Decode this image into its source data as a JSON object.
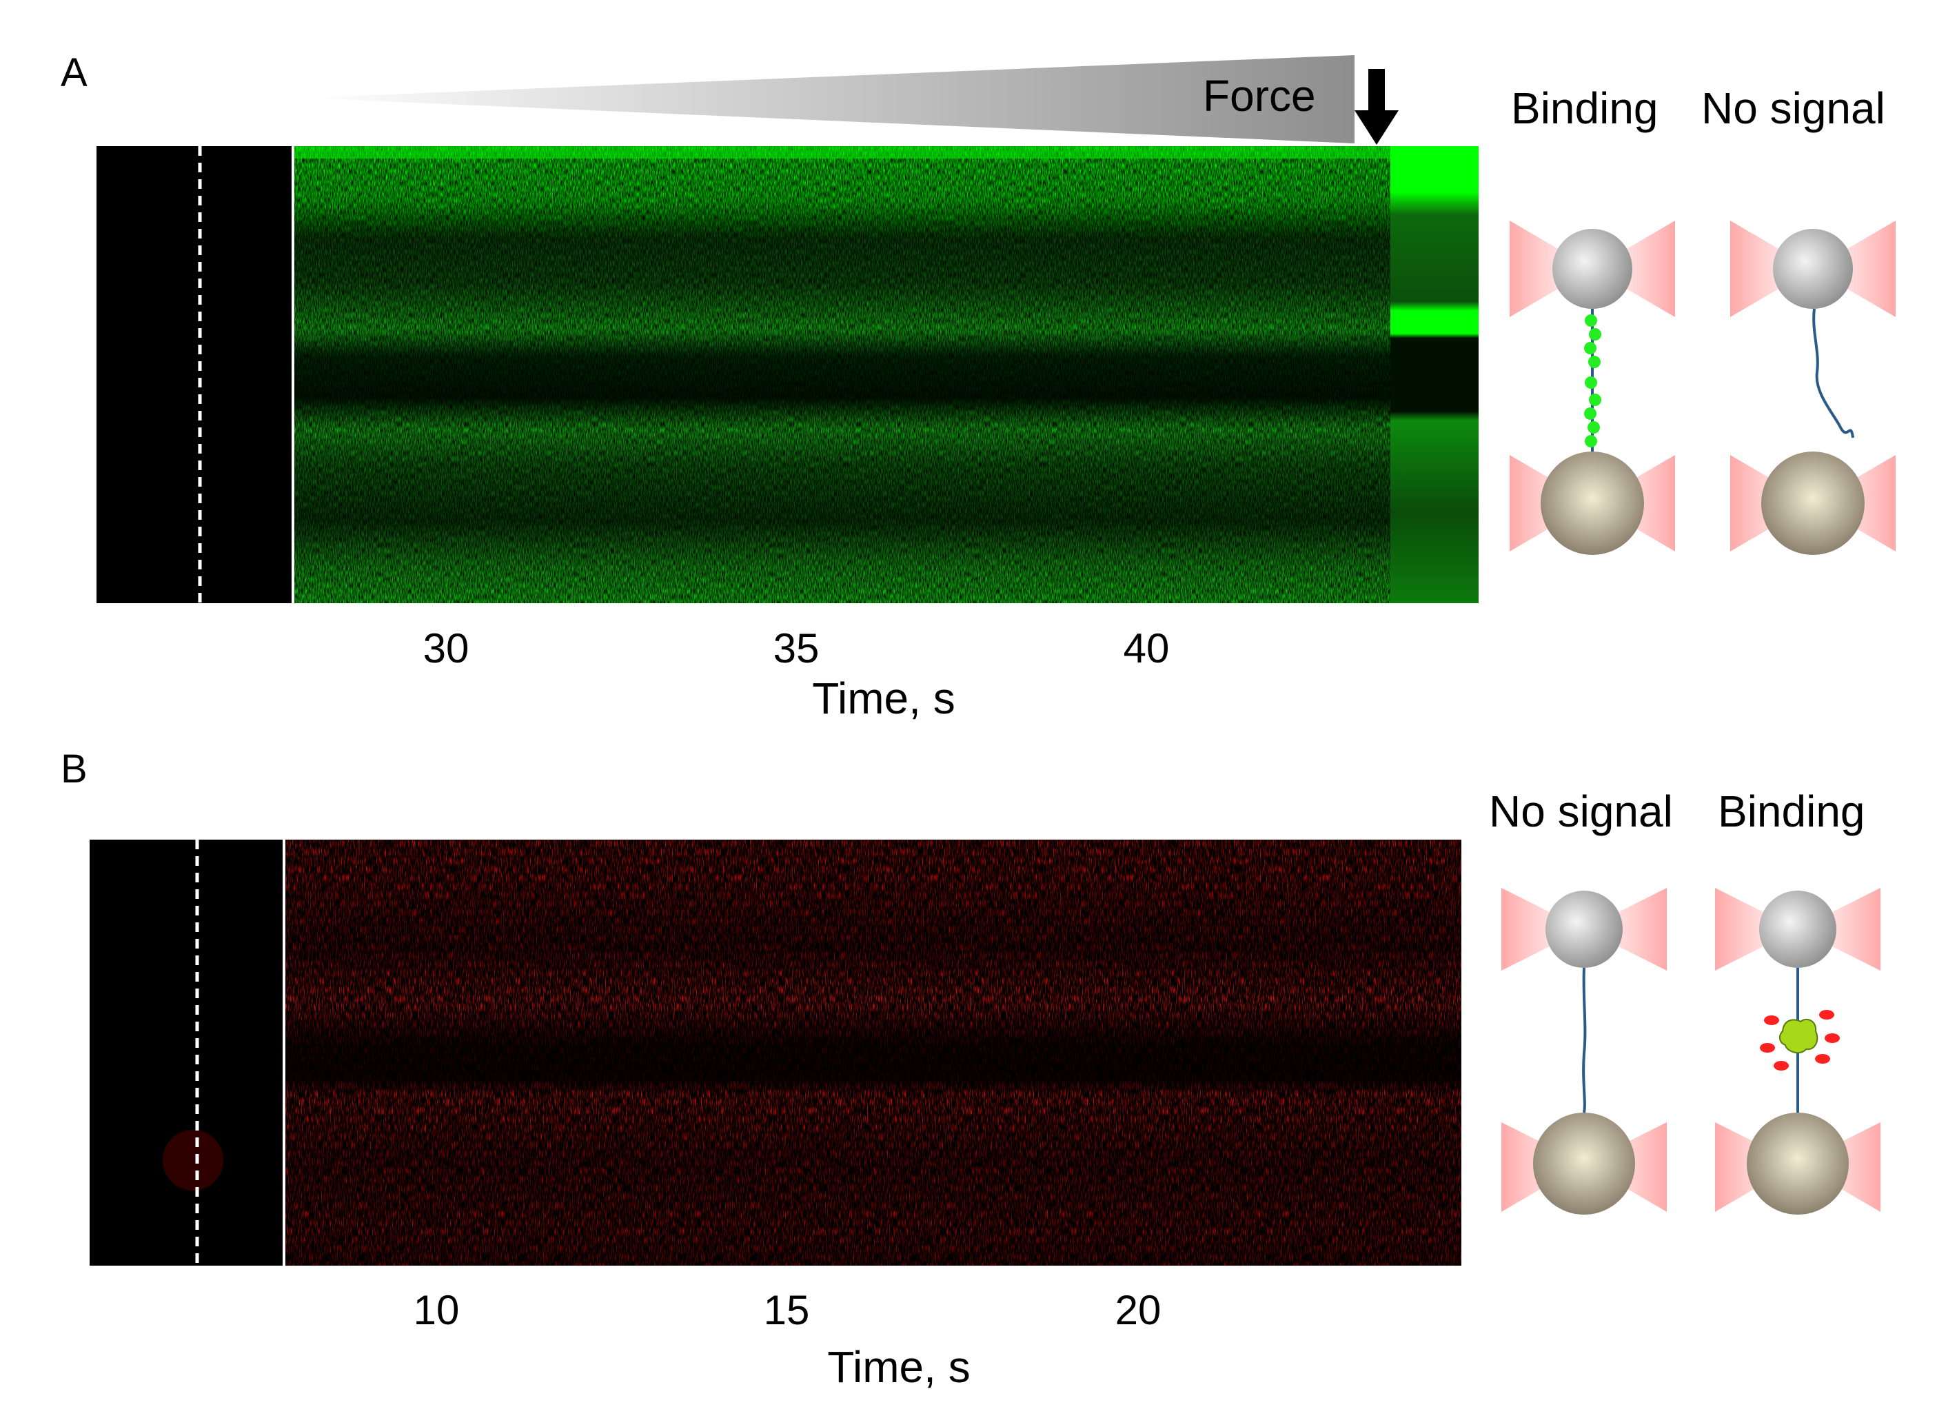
{
  "panels": [
    {
      "letter": "A",
      "force_label": "Force",
      "xlabel": "Time, s",
      "ticks": [
        "30",
        "35",
        "40"
      ],
      "schematic_labels": [
        "Binding",
        "No signal"
      ],
      "colors": {
        "signal": "#00ff00",
        "background": "#000000"
      }
    },
    {
      "letter": "B",
      "xlabel": "Time, s",
      "ticks": [
        "10",
        "15",
        "20"
      ],
      "schematic_labels": [
        "No signal",
        "Binding"
      ],
      "colors": {
        "signal": "#ff1010",
        "background": "#000000"
      }
    }
  ]
}
